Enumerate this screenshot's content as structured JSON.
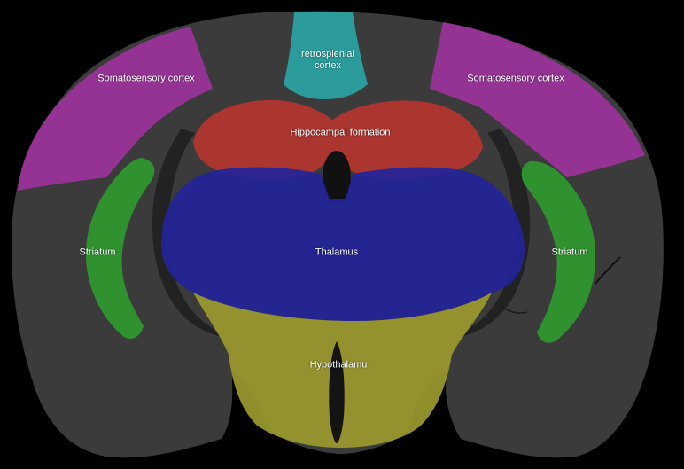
{
  "colors": {
    "background": "#000000",
    "tissue": "#3b3b3b",
    "tissue_dark": "#1f1f1f",
    "somatosensory": "#a533a5",
    "retrosplenial": "#2aa6a6",
    "hippocampal": "#b8352f",
    "thalamus": "#24249a",
    "striatum": "#2f9a2f",
    "hypothalamus": "#9c9a2e"
  },
  "regions": {
    "somatosensory_left": "Somatosensory cortex",
    "somatosensory_right": "Somatosensory cortex",
    "retrosplenial": "retrosplenial cortex",
    "hippocampal": "Hippocampal formation",
    "thalamus": "Thalamus",
    "striatum_left": "Striatum",
    "striatum_right": "Striatum",
    "hypothalamus": "Hypothalamu"
  }
}
